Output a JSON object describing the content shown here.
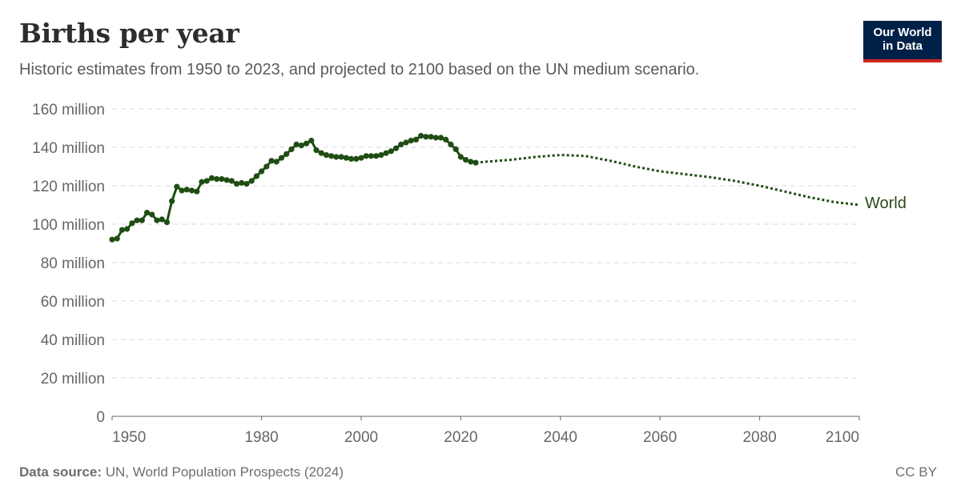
{
  "header": {
    "title": "Births per year",
    "subtitle": "Historic estimates from 1950 to 2023, and projected to 2100 based on the UN medium scenario."
  },
  "logo": {
    "line1": "Our World",
    "line2": "in Data"
  },
  "footer": {
    "source_label": "Data source:",
    "source_text": " UN, World Population Prospects (2024)",
    "license": "CC BY"
  },
  "colors": {
    "series": "#1f4d13",
    "grid": "#d9d9d9",
    "axis": "#666666"
  },
  "chart_data": {
    "type": "line",
    "ylim": [
      0,
      160000000
    ],
    "xlim": [
      1950,
      2100
    ],
    "y_ticks": [
      0,
      20000000,
      40000000,
      60000000,
      80000000,
      100000000,
      120000000,
      140000000,
      160000000
    ],
    "y_tick_labels": [
      "0",
      "20 million",
      "40 million",
      "60 million",
      "80 million",
      "100 million",
      "120 million",
      "140 million",
      "160 million"
    ],
    "x_ticks": [
      1950,
      1980,
      2000,
      2020,
      2040,
      2060,
      2080,
      2100
    ],
    "x_tick_labels": [
      "1950",
      "1980",
      "2000",
      "2020",
      "2040",
      "2060",
      "2080",
      "2100"
    ],
    "grid": true,
    "series": [
      {
        "name": "World",
        "historic": {
          "x": [
            1950,
            1951,
            1952,
            1953,
            1954,
            1955,
            1956,
            1957,
            1958,
            1959,
            1960,
            1961,
            1962,
            1963,
            1964,
            1965,
            1966,
            1967,
            1968,
            1969,
            1970,
            1971,
            1972,
            1973,
            1974,
            1975,
            1976,
            1977,
            1978,
            1979,
            1980,
            1981,
            1982,
            1983,
            1984,
            1985,
            1986,
            1987,
            1988,
            1989,
            1990,
            1991,
            1992,
            1993,
            1994,
            1995,
            1996,
            1997,
            1998,
            1999,
            2000,
            2001,
            2002,
            2003,
            2004,
            2005,
            2006,
            2007,
            2008,
            2009,
            2010,
            2011,
            2012,
            2013,
            2014,
            2015,
            2016,
            2017,
            2018,
            2019,
            2020,
            2021,
            2022,
            2023
          ],
          "y": [
            92000000,
            92500000,
            97000000,
            97500000,
            100500000,
            102000000,
            102000000,
            106000000,
            105000000,
            102000000,
            102500000,
            101000000,
            112000000,
            119500000,
            117500000,
            118000000,
            117500000,
            117000000,
            122000000,
            122500000,
            124000000,
            123500000,
            123500000,
            123000000,
            122500000,
            121000000,
            121500000,
            121000000,
            122500000,
            125000000,
            127500000,
            130000000,
            133000000,
            132500000,
            134500000,
            136500000,
            139000000,
            141500000,
            141000000,
            142000000,
            143500000,
            138500000,
            137000000,
            136000000,
            135500000,
            135000000,
            135000000,
            134500000,
            134000000,
            134000000,
            134500000,
            135500000,
            135500000,
            135500000,
            136000000,
            137000000,
            138000000,
            139500000,
            141500000,
            142500000,
            143500000,
            144000000,
            146000000,
            145500000,
            145500000,
            145000000,
            145000000,
            144000000,
            141500000,
            139000000,
            135000000,
            133500000,
            132500000,
            132000000
          ]
        },
        "projected": {
          "x": [
            2023,
            2025,
            2030,
            2035,
            2040,
            2045,
            2050,
            2055,
            2060,
            2065,
            2070,
            2075,
            2080,
            2085,
            2090,
            2095,
            2100
          ],
          "y": [
            132000000,
            132500000,
            133500000,
            135000000,
            136000000,
            135500000,
            133000000,
            130000000,
            127500000,
            126000000,
            124500000,
            122500000,
            120000000,
            117000000,
            114000000,
            111500000,
            110000000
          ]
        }
      }
    ]
  }
}
